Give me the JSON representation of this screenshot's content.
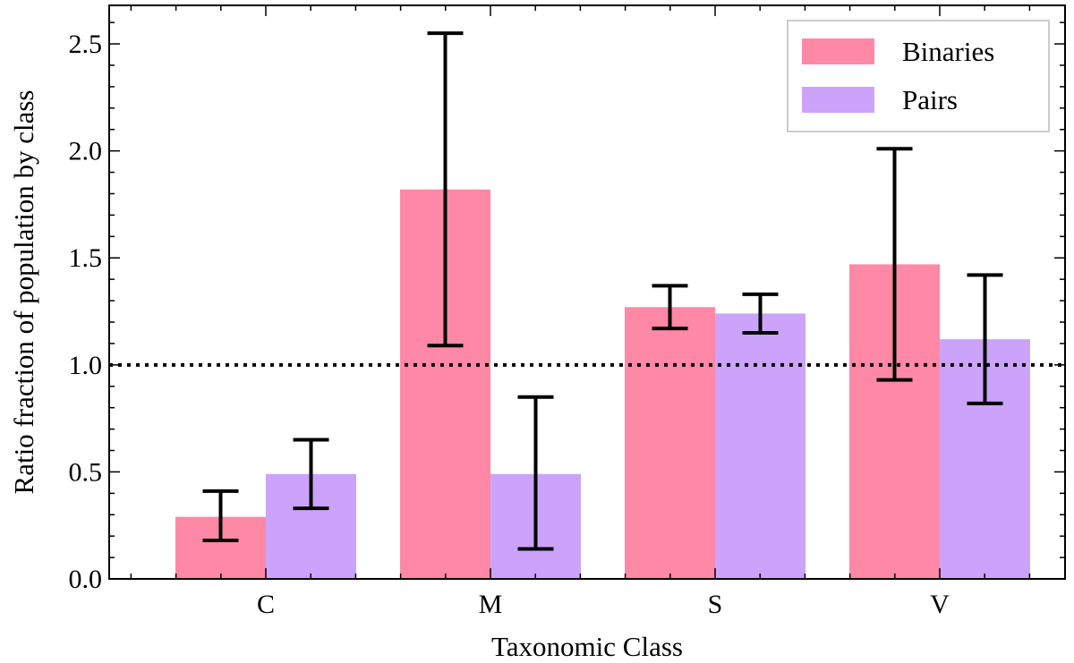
{
  "chart_data": {
    "type": "bar",
    "title": "",
    "xlabel": "Taxonomic Class",
    "ylabel": "Ratio fraction of population by class",
    "categories": [
      "C",
      "M",
      "S",
      "V"
    ],
    "ylim": [
      0,
      2.68
    ],
    "yticks": [
      0.0,
      0.5,
      1.0,
      1.5,
      2.0,
      2.5
    ],
    "ytick_labels": [
      "0.0",
      "0.5",
      "1.0",
      "1.5",
      "2.0",
      "2.5"
    ],
    "series": [
      {
        "name": "Binaries",
        "color": "#ff88a6",
        "values": [
          0.29,
          1.82,
          1.27,
          1.47
        ],
        "err_low": [
          0.18,
          1.09,
          1.17,
          0.93
        ],
        "err_high": [
          0.41,
          2.55,
          1.37,
          2.01
        ]
      },
      {
        "name": "Pairs",
        "color": "#cba3fb",
        "values": [
          0.49,
          0.49,
          1.24,
          1.12
        ],
        "err_low": [
          0.33,
          0.14,
          1.15,
          0.82
        ],
        "err_high": [
          0.65,
          0.85,
          1.33,
          1.42
        ]
      }
    ],
    "reference_line": {
      "y": 1.0,
      "style": "dotted"
    },
    "legend": {
      "position": "top-right",
      "entries": [
        "Binaries",
        "Pairs"
      ]
    },
    "grid": false
  }
}
